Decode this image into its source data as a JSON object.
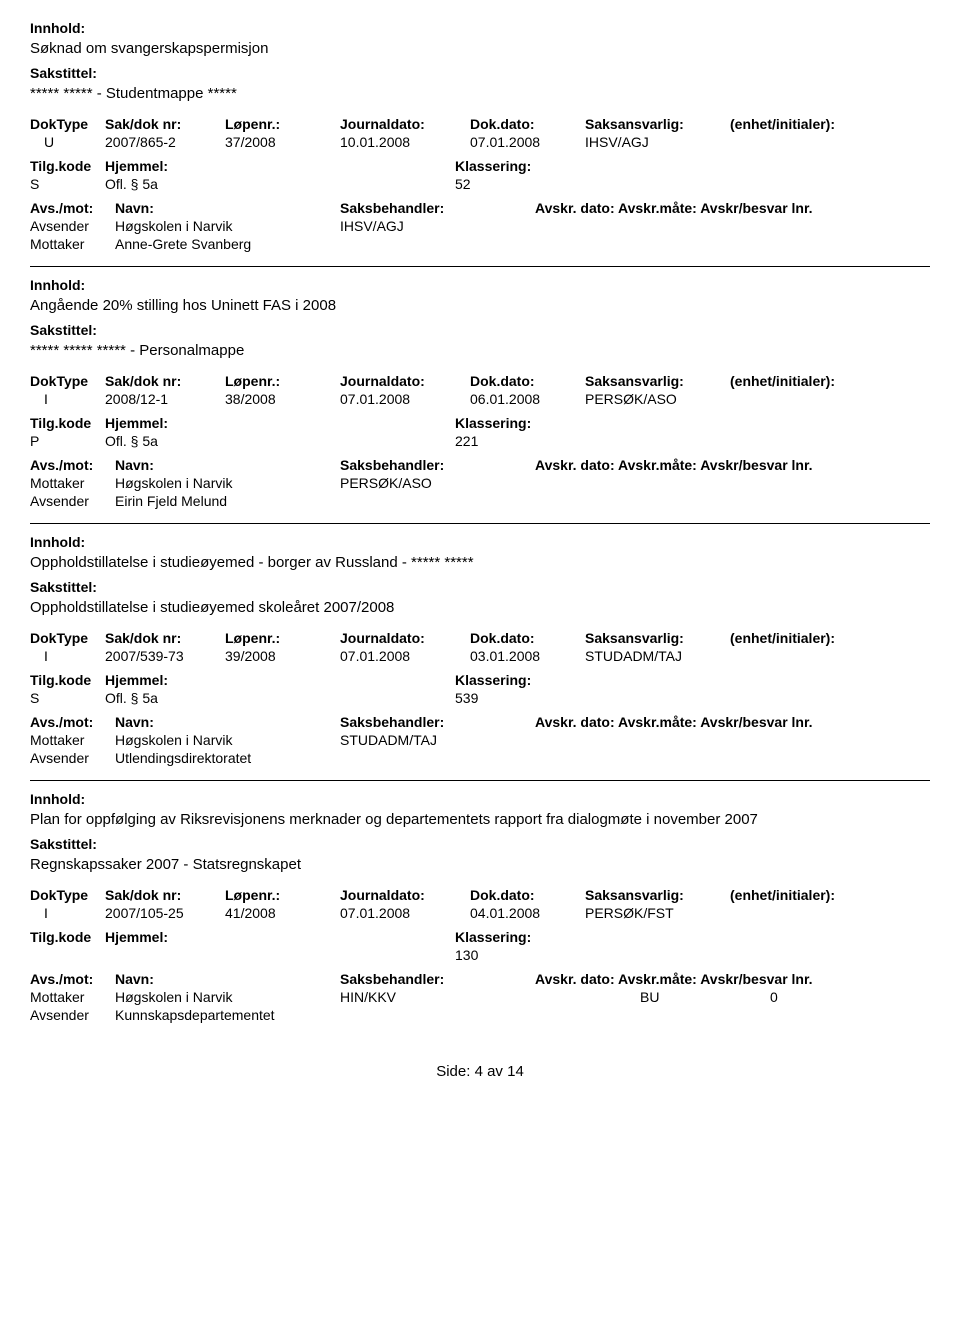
{
  "labels": {
    "innhold": "Innhold:",
    "sakstittel": "Sakstittel:",
    "doktype": "DokType",
    "sakdok": "Sak/dok nr:",
    "lopenr": "Løpenr.:",
    "journaldato": "Journaldato:",
    "dokdato": "Dok.dato:",
    "saksansvarlig": "Saksansvarlig:",
    "enhet": "(enhet/initialer):",
    "tilgkode": "Tilg.kode",
    "hjemmel": "Hjemmel:",
    "klassering": "Klassering:",
    "avsmot": "Avs./mot:",
    "navn": "Navn:",
    "saksbehandler": "Saksbehandler:",
    "avskrdet": "Avskr. dato: Avskr.måte: Avskr/besvar lnr."
  },
  "entries": [
    {
      "innhold": "Søknad om svangerskapspermisjon",
      "sakstittel": "***** ***** - Studentmappe *****",
      "doktype": "U",
      "sakdok": "2007/865-2",
      "lopenr": "37/2008",
      "journaldato": "10.01.2008",
      "dokdato": "07.01.2008",
      "saksansvarlig": "IHSV/AGJ",
      "enhet": "",
      "tilgkode": "S",
      "hjemmel": "Ofl. § 5a",
      "klassering": "52",
      "parties": [
        {
          "role": "Avsender",
          "name": "Høgskolen i Narvik",
          "handler": "IHSV/AGJ",
          "avskrdato": "",
          "avskrmate": "",
          "avskrlnr": ""
        },
        {
          "role": "Mottaker",
          "name": "Anne-Grete Svanberg",
          "handler": "",
          "avskrdato": "",
          "avskrmate": "",
          "avskrlnr": ""
        }
      ]
    },
    {
      "innhold": "Angående 20% stilling hos Uninett FAS i 2008",
      "sakstittel": "***** ***** ***** - Personalmappe",
      "doktype": "I",
      "sakdok": "2008/12-1",
      "lopenr": "38/2008",
      "journaldato": "07.01.2008",
      "dokdato": "06.01.2008",
      "saksansvarlig": "PERSØK/ASO",
      "enhet": "",
      "tilgkode": "P",
      "hjemmel": "Ofl. § 5a",
      "klassering": "221",
      "parties": [
        {
          "role": "Mottaker",
          "name": "Høgskolen i Narvik",
          "handler": "PERSØK/ASO",
          "avskrdato": "",
          "avskrmate": "",
          "avskrlnr": ""
        },
        {
          "role": "Avsender",
          "name": "Eirin Fjeld Melund",
          "handler": "",
          "avskrdato": "",
          "avskrmate": "",
          "avskrlnr": ""
        }
      ]
    },
    {
      "innhold": "Oppholdstillatelse i studieøyemed - borger av Russland - ***** *****",
      "sakstittel": "Oppholdstillatelse i studieøyemed skoleåret 2007/2008",
      "doktype": "I",
      "sakdok": "2007/539-73",
      "lopenr": "39/2008",
      "journaldato": "07.01.2008",
      "dokdato": "03.01.2008",
      "saksansvarlig": "STUDADM/TAJ",
      "enhet": "",
      "tilgkode": "S",
      "hjemmel": "Ofl. § 5a",
      "klassering": "539",
      "parties": [
        {
          "role": "Mottaker",
          "name": "Høgskolen i Narvik",
          "handler": "STUDADM/TAJ",
          "avskrdato": "",
          "avskrmate": "",
          "avskrlnr": ""
        },
        {
          "role": "Avsender",
          "name": "Utlendingsdirektoratet",
          "handler": "",
          "avskrdato": "",
          "avskrmate": "",
          "avskrlnr": ""
        }
      ]
    },
    {
      "innhold": "Plan for oppfølging av Riksrevisjonens merknader og departementets rapport fra dialogmøte i november 2007",
      "sakstittel": "Regnskapssaker 2007 - Statsregnskapet",
      "doktype": "I",
      "sakdok": "2007/105-25",
      "lopenr": "41/2008",
      "journaldato": "07.01.2008",
      "dokdato": "04.01.2008",
      "saksansvarlig": "PERSØK/FST",
      "enhet": "",
      "tilgkode": "",
      "hjemmel": "",
      "klassering": "130",
      "parties": [
        {
          "role": "Mottaker",
          "name": "Høgskolen i Narvik",
          "handler": "HIN/KKV",
          "avskrdato": "",
          "avskrmate": "BU",
          "avskrlnr": "0"
        },
        {
          "role": "Avsender",
          "name": "Kunnskapsdepartementet",
          "handler": "",
          "avskrdato": "",
          "avskrmate": "",
          "avskrlnr": ""
        }
      ]
    }
  ],
  "footer": "Side:  4  av  14"
}
